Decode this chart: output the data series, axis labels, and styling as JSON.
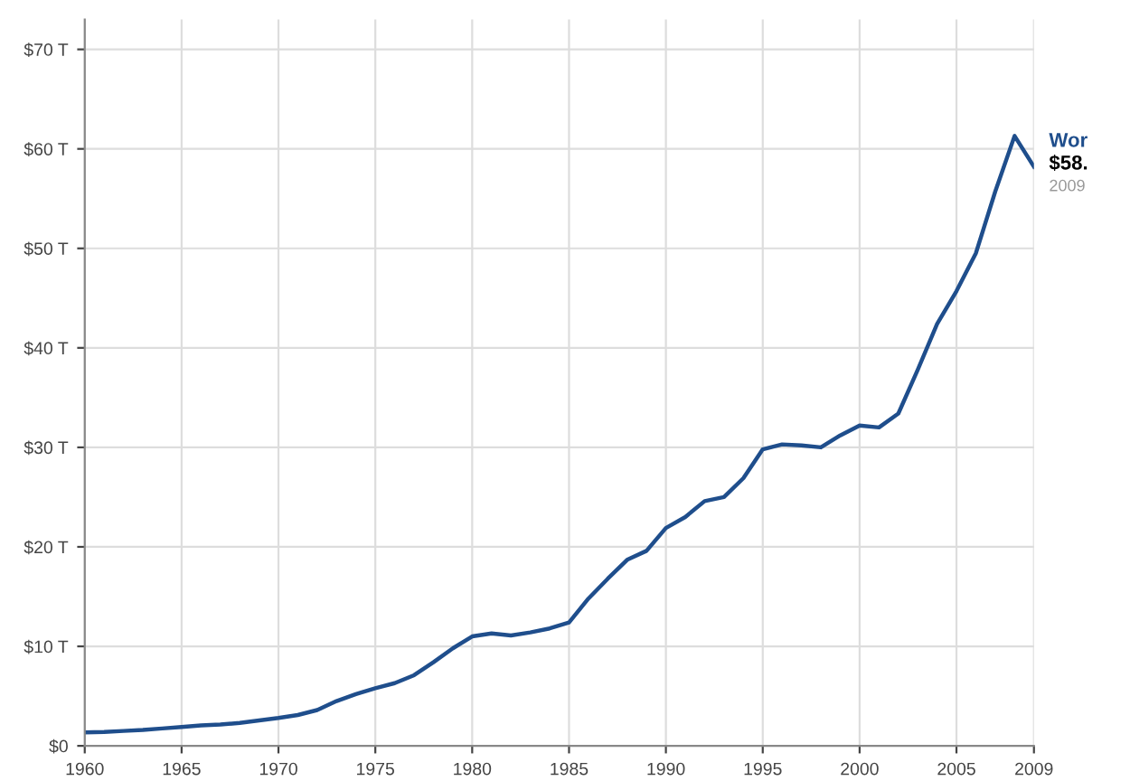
{
  "chart_data": {
    "type": "line",
    "x": [
      1960,
      1961,
      1962,
      1963,
      1964,
      1965,
      1966,
      1967,
      1968,
      1969,
      1970,
      1971,
      1972,
      1973,
      1974,
      1975,
      1976,
      1977,
      1978,
      1979,
      1980,
      1981,
      1982,
      1983,
      1984,
      1985,
      1986,
      1987,
      1988,
      1989,
      1990,
      1991,
      1992,
      1993,
      1994,
      1995,
      1996,
      1997,
      1998,
      1999,
      2000,
      2001,
      2002,
      2003,
      2004,
      2005,
      2006,
      2007,
      2008,
      2009
    ],
    "series": [
      {
        "name": "Wor",
        "color": "#1f4e8c",
        "values": [
          1.35,
          1.4,
          1.5,
          1.6,
          1.75,
          1.9,
          2.05,
          2.15,
          2.3,
          2.55,
          2.8,
          3.1,
          3.6,
          4.5,
          5.2,
          5.8,
          6.3,
          7.1,
          8.4,
          9.8,
          11.0,
          11.3,
          11.1,
          11.4,
          11.8,
          12.4,
          14.8,
          16.8,
          18.7,
          19.6,
          21.9,
          23.0,
          24.6,
          25.0,
          26.9,
          29.8,
          30.3,
          30.2,
          30.0,
          31.2,
          32.2,
          32.0,
          33.4,
          37.8,
          42.4,
          45.7,
          49.5,
          55.7,
          61.3,
          58.2
        ]
      }
    ],
    "annotations": [
      {
        "text": "$58.",
        "x": 2009,
        "y": 58.2
      },
      {
        "text": "2009",
        "x": 2009,
        "y": 58.2
      }
    ],
    "xlim": [
      1960,
      2009
    ],
    "xticks": [
      1960,
      1965,
      1970,
      1975,
      1980,
      1985,
      1990,
      1995,
      2000,
      2005,
      2009
    ],
    "ylim": [
      0,
      73
    ],
    "yticks": [
      {
        "value": 0,
        "label": "$0"
      },
      {
        "value": 10,
        "label": "$10 T"
      },
      {
        "value": 20,
        "label": "$20 T"
      },
      {
        "value": 30,
        "label": "$30 T"
      },
      {
        "value": 40,
        "label": "$40 T"
      },
      {
        "value": 50,
        "label": "$50 T"
      },
      {
        "value": 60,
        "label": "$60 T"
      },
      {
        "value": 70,
        "label": "$70 T"
      }
    ],
    "grid": true,
    "marker": "none",
    "line_style": "solid",
    "legend": false
  }
}
